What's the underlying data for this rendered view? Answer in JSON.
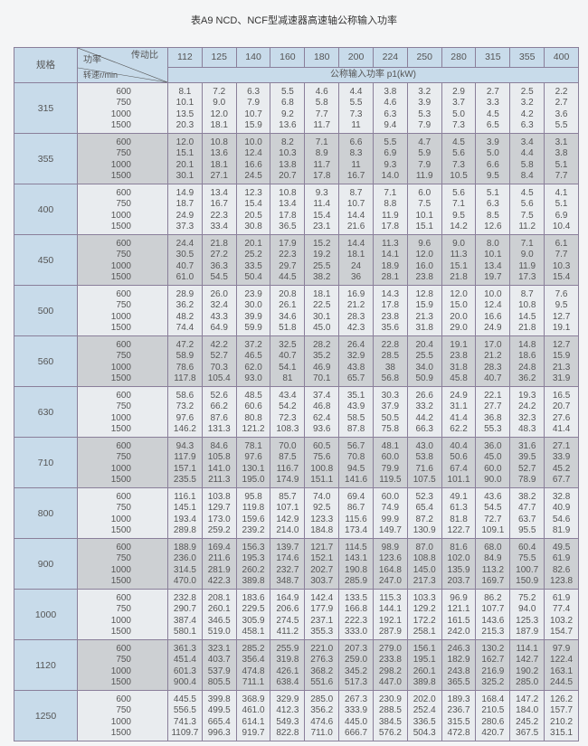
{
  "title": "表A9   NCD、NCF型减速器高速轴公称输入功率",
  "table": {
    "spec_label": "规格",
    "ratio_label": "传动比",
    "power_label": "功率",
    "speed_label": "转速r/min",
    "unit_label": "公称输入功率 p1(kW)",
    "ratios": [
      "112",
      "125",
      "140",
      "160",
      "180",
      "200",
      "224",
      "250",
      "280",
      "315",
      "355",
      "400"
    ],
    "groups": [
      {
        "spec": "315",
        "speeds": [
          "600",
          "750",
          "1000",
          "1500"
        ],
        "values": [
          [
            "8.1",
            "7.2",
            "6.3",
            "5.5",
            "4.6",
            "4.4",
            "3.8",
            "3.2",
            "2.9",
            "2.7",
            "2.5",
            "2.2"
          ],
          [
            "10.1",
            "9.0",
            "7.9",
            "6.8",
            "5.8",
            "5.5",
            "4.6",
            "3.9",
            "3.7",
            "3.3",
            "3.2",
            "2.7"
          ],
          [
            "13.5",
            "12.0",
            "10.7",
            "9.2",
            "7.7",
            "7.3",
            "6.3",
            "5.3",
            "5.0",
            "4.5",
            "4.2",
            "3.6"
          ],
          [
            "20.3",
            "18.1",
            "15.9",
            "13.6",
            "11.7",
            "11",
            "9.4",
            "7.9",
            "7.3",
            "6.5",
            "6.3",
            "5.5"
          ]
        ]
      },
      {
        "spec": "355",
        "speeds": [
          "600",
          "750",
          "1000",
          "1500"
        ],
        "values": [
          [
            "12.0",
            "10.8",
            "10.0",
            "8.2",
            "7.1",
            "6.6",
            "5.5",
            "4.7",
            "4.5",
            "3.9",
            "3.4",
            "3.1"
          ],
          [
            "15.1",
            "13.6",
            "12.4",
            "10.3",
            "8.9",
            "8.3",
            "6.9",
            "5.9",
            "5.6",
            "5.0",
            "4.4",
            "3.8"
          ],
          [
            "20.1",
            "18.1",
            "16.6",
            "13.8",
            "11.7",
            "11",
            "9.3",
            "7.9",
            "7.3",
            "6.6",
            "5.8",
            "5.1"
          ],
          [
            "30.1",
            "27.1",
            "24.5",
            "20.7",
            "17.8",
            "16.7",
            "14.0",
            "11.9",
            "10.5",
            "9.5",
            "8.4",
            "7.7"
          ]
        ]
      },
      {
        "spec": "400",
        "speeds": [
          "600",
          "750",
          "1000",
          "1500"
        ],
        "values": [
          [
            "14.9",
            "13.4",
            "12.3",
            "10.8",
            "9.3",
            "8.7",
            "7.1",
            "6.0",
            "5.6",
            "5.1",
            "4.5",
            "4.1"
          ],
          [
            "18.7",
            "16.7",
            "15.4",
            "13.4",
            "11.4",
            "10.7",
            "8.8",
            "7.5",
            "7.1",
            "6.3",
            "5.6",
            "5.1"
          ],
          [
            "24.9",
            "22.3",
            "20.5",
            "17.8",
            "15.4",
            "14.4",
            "11.9",
            "10.1",
            "9.5",
            "8.5",
            "7.5",
            "6.9"
          ],
          [
            "37.3",
            "33.4",
            "30.8",
            "36.5",
            "23.1",
            "21.6",
            "17.8",
            "15.1",
            "14.2",
            "12.6",
            "11.2",
            "10.4"
          ]
        ]
      },
      {
        "spec": "450",
        "speeds": [
          "600",
          "750",
          "1000",
          "1500"
        ],
        "values": [
          [
            "24.4",
            "21.8",
            "20.1",
            "17.9",
            "15.2",
            "14.4",
            "11.3",
            "9.6",
            "9.0",
            "8.0",
            "7.1",
            "6.1"
          ],
          [
            "30.5",
            "27.2",
            "25.2",
            "22.3",
            "19.2",
            "18.1",
            "14.1",
            "12.0",
            "11.3",
            "10.1",
            "9.0",
            "7.7"
          ],
          [
            "40.7",
            "36.3",
            "33.5",
            "29.7",
            "25.5",
            "24",
            "18.9",
            "16.0",
            "15.1",
            "13.4",
            "11.9",
            "10.3"
          ],
          [
            "61.0",
            "54.5",
            "50.4",
            "44.5",
            "38.2",
            "36",
            "28.1",
            "23.8",
            "21.8",
            "19.7",
            "17.3",
            "15.4"
          ]
        ]
      },
      {
        "spec": "500",
        "speeds": [
          "600",
          "750",
          "1000",
          "1500"
        ],
        "values": [
          [
            "28.9",
            "26.0",
            "23.9",
            "20.8",
            "18.1",
            "16.9",
            "14.3",
            "12.8",
            "12.0",
            "10.0",
            "8.7",
            "7.6"
          ],
          [
            "36.2",
            "32.4",
            "30.0",
            "26.1",
            "22.5",
            "21.2",
            "17.8",
            "15.9",
            "15.0",
            "12.4",
            "10.8",
            "9.5"
          ],
          [
            "48.2",
            "43.3",
            "39.9",
            "34.6",
            "30.1",
            "28.3",
            "23.8",
            "21.3",
            "20.0",
            "16.6",
            "14.5",
            "12.7"
          ],
          [
            "74.4",
            "64.9",
            "59.9",
            "51.8",
            "45.0",
            "42.3",
            "35.6",
            "31.8",
            "29.0",
            "24.9",
            "21.8",
            "19.1"
          ]
        ]
      },
      {
        "spec": "560",
        "speeds": [
          "600",
          "750",
          "1000",
          "1500"
        ],
        "values": [
          [
            "47.2",
            "42.2",
            "37.2",
            "32.5",
            "28.2",
            "26.4",
            "22.8",
            "20.4",
            "19.1",
            "17.0",
            "14.8",
            "12.7"
          ],
          [
            "58.9",
            "52.7",
            "46.5",
            "40.7",
            "35.2",
            "32.9",
            "28.5",
            "25.5",
            "23.8",
            "21.2",
            "18.6",
            "15.9"
          ],
          [
            "78.6",
            "70.3",
            "62.0",
            "54.1",
            "46.9",
            "43.8",
            "38",
            "34.0",
            "31.8",
            "28.3",
            "24.8",
            "21.3"
          ],
          [
            "117.8",
            "105.4",
            "93.0",
            "81",
            "70.1",
            "65.7",
            "56.8",
            "50.9",
            "45.8",
            "40.7",
            "36.2",
            "31.9"
          ]
        ]
      },
      {
        "spec": "630",
        "speeds": [
          "600",
          "750",
          "1000",
          "1500"
        ],
        "values": [
          [
            "58.6",
            "52.6",
            "48.5",
            "43.4",
            "37.4",
            "35.1",
            "30.3",
            "26.6",
            "24.9",
            "22.1",
            "19.3",
            "16.5"
          ],
          [
            "73.2",
            "66.2",
            "60.6",
            "54.2",
            "46.8",
            "43.9",
            "37.9",
            "33.2",
            "31.1",
            "27.7",
            "24.2",
            "20.7"
          ],
          [
            "97.6",
            "87.6",
            "80.8",
            "72.3",
            "62.4",
            "58.5",
            "50.5",
            "44.2",
            "41.4",
            "36.8",
            "32.3",
            "27.6"
          ],
          [
            "146.2",
            "131.3",
            "121.2",
            "108.3",
            "93.6",
            "87.8",
            "75.8",
            "66.3",
            "62.2",
            "55.3",
            "48.3",
            "41.4"
          ]
        ]
      },
      {
        "spec": "710",
        "speeds": [
          "600",
          "750",
          "1000",
          "1500"
        ],
        "values": [
          [
            "94.3",
            "84.6",
            "78.1",
            "70.0",
            "60.5",
            "56.7",
            "48.1",
            "43.0",
            "40.4",
            "36.0",
            "31.6",
            "27.1"
          ],
          [
            "117.9",
            "105.8",
            "97.6",
            "87.5",
            "75.6",
            "70.8",
            "60.0",
            "53.8",
            "50.6",
            "45.0",
            "39.5",
            "33.9"
          ],
          [
            "157.1",
            "141.0",
            "130.1",
            "116.7",
            "100.8",
            "94.5",
            "79.9",
            "71.6",
            "67.4",
            "60.0",
            "52.7",
            "45.2"
          ],
          [
            "235.5",
            "211.3",
            "195.0",
            "174.9",
            "151.1",
            "141.6",
            "119.5",
            "107.5",
            "101.1",
            "90.0",
            "78.9",
            "67.7"
          ]
        ]
      },
      {
        "spec": "800",
        "speeds": [
          "600",
          "750",
          "1000",
          "1500"
        ],
        "values": [
          [
            "116.1",
            "103.8",
            "95.8",
            "85.7",
            "74.0",
            "69.4",
            "60.0",
            "52.3",
            "49.1",
            "43.6",
            "38.2",
            "32.8"
          ],
          [
            "145.1",
            "129.7",
            "119.8",
            "107.1",
            "92.5",
            "86.7",
            "74.9",
            "65.4",
            "61.3",
            "54.5",
            "47.7",
            "40.9"
          ],
          [
            "193.4",
            "173.0",
            "159.6",
            "142.9",
            "123.3",
            "115.6",
            "99.9",
            "87.2",
            "81.8",
            "72.7",
            "63.7",
            "54.6"
          ],
          [
            "289.8",
            "259.2",
            "239.2",
            "214.0",
            "184.8",
            "173.4",
            "149.7",
            "130.9",
            "122.7",
            "109.1",
            "95.5",
            "81.9"
          ]
        ]
      },
      {
        "spec": "900",
        "speeds": [
          "600",
          "750",
          "1000",
          "1500"
        ],
        "values": [
          [
            "188.9",
            "169.4",
            "156.3",
            "139.7",
            "121.7",
            "114.5",
            "98.9",
            "87.0",
            "81.6",
            "68.0",
            "60.4",
            "49.5"
          ],
          [
            "236.0",
            "211.6",
            "195.3",
            "174.6",
            "152.1",
            "143.1",
            "123.6",
            "108.8",
            "102.0",
            "84.9",
            "75.5",
            "61.9"
          ],
          [
            "314.5",
            "281.9",
            "260.2",
            "232.7",
            "202.7",
            "190.8",
            "164.8",
            "145.0",
            "135.9",
            "113.2",
            "100.7",
            "82.6"
          ],
          [
            "470.0",
            "422.3",
            "389.8",
            "348.7",
            "303.7",
            "285.9",
            "247.0",
            "217.3",
            "203.7",
            "169.7",
            "150.9",
            "123.8"
          ]
        ]
      },
      {
        "spec": "1000",
        "speeds": [
          "600",
          "750",
          "1000",
          "1500"
        ],
        "values": [
          [
            "232.8",
            "208.1",
            "183.6",
            "164.9",
            "142.4",
            "133.5",
            "115.3",
            "103.3",
            "96.9",
            "86.2",
            "75.2",
            "61.9"
          ],
          [
            "290.7",
            "260.1",
            "229.5",
            "206.6",
            "177.9",
            "166.8",
            "144.1",
            "129.2",
            "121.1",
            "107.7",
            "94.0",
            "77.4"
          ],
          [
            "387.4",
            "346.5",
            "305.9",
            "274.5",
            "237.1",
            "222.3",
            "192.1",
            "172.2",
            "161.5",
            "143.6",
            "125.3",
            "103.2"
          ],
          [
            "580.1",
            "519.0",
            "458.1",
            "411.2",
            "355.3",
            "333.0",
            "287.9",
            "258.1",
            "242.0",
            "215.3",
            "187.9",
            "154.7"
          ]
        ]
      },
      {
        "spec": "1120",
        "speeds": [
          "600",
          "750",
          "1000",
          "1500"
        ],
        "values": [
          [
            "361.3",
            "323.1",
            "285.2",
            "255.9",
            "221.0",
            "207.3",
            "279.0",
            "156.1",
            "246.3",
            "130.2",
            "114.1",
            "97.9"
          ],
          [
            "451.4",
            "403.7",
            "356.4",
            "319.8",
            "276.3",
            "259.0",
            "233.8",
            "195.1",
            "182.9",
            "162.7",
            "142.7",
            "122.4"
          ],
          [
            "601.3",
            "537.9",
            "474.8",
            "426.1",
            "368.2",
            "345.2",
            "298.2",
            "260.1",
            "243.8",
            "216.9",
            "190.2",
            "163.1"
          ],
          [
            "900.4",
            "805.5",
            "711.1",
            "638.4",
            "551.6",
            "517.3",
            "447.0",
            "389.8",
            "365.5",
            "325.2",
            "285.0",
            "244.5"
          ]
        ]
      },
      {
        "spec": "1250",
        "speeds": [
          "600",
          "750",
          "1000",
          "1500"
        ],
        "values": [
          [
            "445.5",
            "399.8",
            "368.9",
            "329.9",
            "285.0",
            "267.3",
            "230.9",
            "202.0",
            "189.3",
            "168.4",
            "147.2",
            "126.2"
          ],
          [
            "556.5",
            "499.5",
            "461.0",
            "412.3",
            "356.2",
            "333.9",
            "288.5",
            "252.4",
            "236.7",
            "210.5",
            "184.0",
            "157.7"
          ],
          [
            "741.3",
            "665.4",
            "614.1",
            "549.3",
            "474.6",
            "445.0",
            "384.5",
            "336.5",
            "315.5",
            "280.6",
            "245.2",
            "210.2"
          ],
          [
            "1109.7",
            "996.3",
            "919.7",
            "822.8",
            "711.0",
            "666.7",
            "576.2",
            "504.3",
            "472.8",
            "420.7",
            "367.5",
            "315.1"
          ]
        ]
      }
    ]
  }
}
